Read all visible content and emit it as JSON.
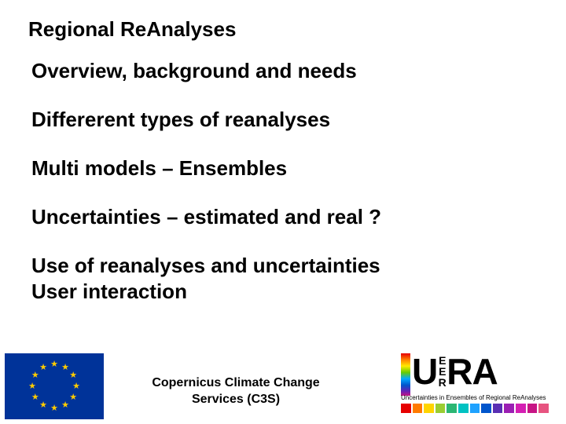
{
  "title": "Regional ReAnalyses",
  "bullets": [
    "Overview, background and needs",
    "Differerent types of reanalyses",
    "Multi models – Ensembles",
    "Uncertainties – estimated and real ?",
    "Use of reanalyses and uncertainties",
    "User interaction"
  ],
  "footer_text_line1": "Copernicus Climate Change",
  "footer_text_line2": "Services (C3S)",
  "eu_flag": {
    "bg_color": "#003399",
    "star_color": "#ffcc00",
    "star_count": 12,
    "ring_radius": 28
  },
  "uerra_logo": {
    "big_letters": {
      "u": "U",
      "stack": [
        "E",
        "E",
        "R"
      ],
      "ra": "RA"
    },
    "subtitle": "Uncertainties in Ensembles of Regional ReAnalyses",
    "rainbow_bar_gradient": [
      "#e60000",
      "#ff7f00",
      "#ffea00",
      "#66cc00",
      "#00aaff",
      "#0055cc",
      "#6b1fb3",
      "#c71585"
    ],
    "swatches": [
      "#e60000",
      "#ff7a00",
      "#ffd400",
      "#9acd32",
      "#2bb673",
      "#00c2c2",
      "#1fa2ff",
      "#0055cc",
      "#5a2fb3",
      "#9b1fb3",
      "#d41fb3",
      "#c71585",
      "#e75480"
    ]
  },
  "typography": {
    "title_fontsize": 26,
    "bullet_fontsize": 26,
    "footer_fontsize": 16,
    "font_family": "Arial"
  },
  "background_color": "#ffffff",
  "text_color": "#000000"
}
